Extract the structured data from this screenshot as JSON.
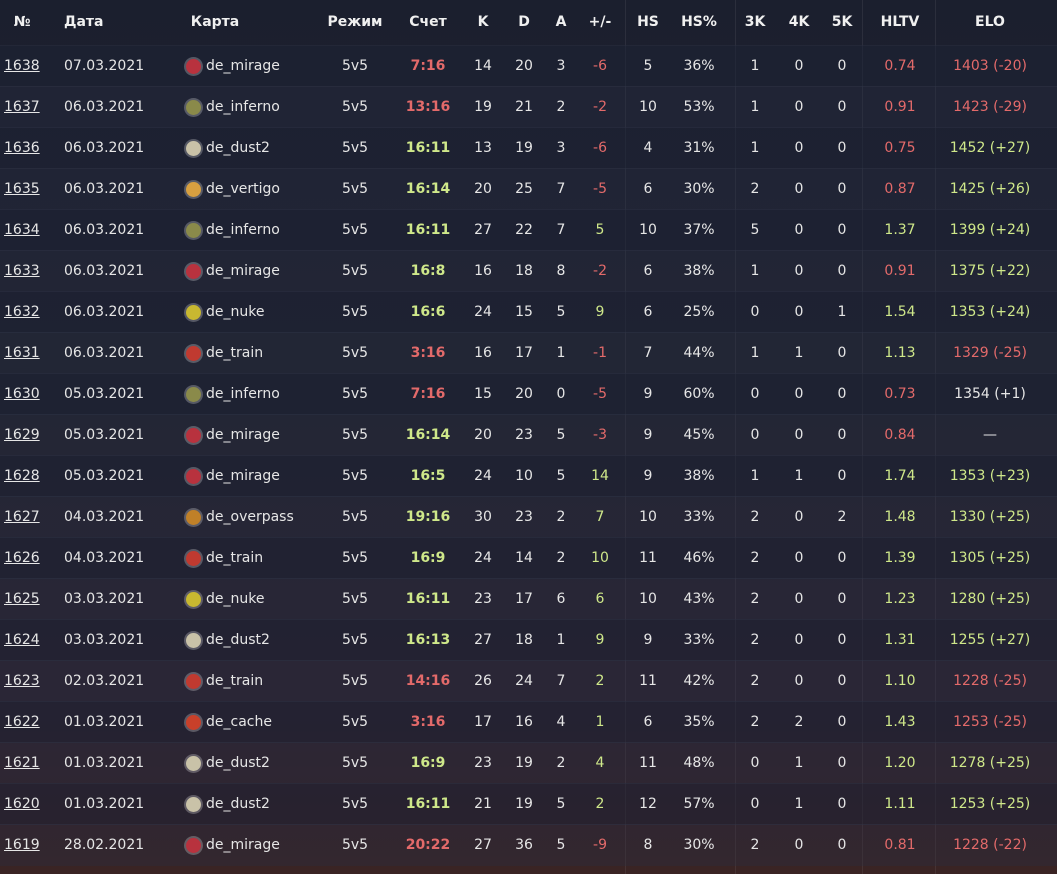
{
  "table": {
    "header": [
      "№",
      "Дата",
      "Карта",
      "Режим",
      "Счет",
      "K",
      "D",
      "A",
      "+/-",
      "HS",
      "HS%",
      "3K",
      "4K",
      "5K",
      "HLTV",
      "ELO"
    ],
    "rows": [
      [
        "1638",
        "07.03.2021",
        "de_mirage",
        "5v5",
        "7:16",
        "14",
        "20",
        "3",
        "-6",
        "5",
        "36%",
        "1",
        "0",
        "0",
        "0.74",
        "1403 (-20)"
      ],
      [
        "1637",
        "06.03.2021",
        "de_inferno",
        "5v5",
        "13:16",
        "19",
        "21",
        "2",
        "-2",
        "10",
        "53%",
        "1",
        "0",
        "0",
        "0.91",
        "1423 (-29)"
      ],
      [
        "1636",
        "06.03.2021",
        "de_dust2",
        "5v5",
        "16:11",
        "13",
        "19",
        "3",
        "-6",
        "4",
        "31%",
        "1",
        "0",
        "0",
        "0.75",
        "1452 (+27)"
      ],
      [
        "1635",
        "06.03.2021",
        "de_vertigo",
        "5v5",
        "16:14",
        "20",
        "25",
        "7",
        "-5",
        "6",
        "30%",
        "2",
        "0",
        "0",
        "0.87",
        "1425 (+26)"
      ],
      [
        "1634",
        "06.03.2021",
        "de_inferno",
        "5v5",
        "16:11",
        "27",
        "22",
        "7",
        "5",
        "10",
        "37%",
        "5",
        "0",
        "0",
        "1.37",
        "1399 (+24)"
      ],
      [
        "1633",
        "06.03.2021",
        "de_mirage",
        "5v5",
        "16:8",
        "16",
        "18",
        "8",
        "-2",
        "6",
        "38%",
        "1",
        "0",
        "0",
        "0.91",
        "1375 (+22)"
      ],
      [
        "1632",
        "06.03.2021",
        "de_nuke",
        "5v5",
        "16:6",
        "24",
        "15",
        "5",
        "9",
        "6",
        "25%",
        "0",
        "0",
        "1",
        "1.54",
        "1353 (+24)"
      ],
      [
        "1631",
        "06.03.2021",
        "de_train",
        "5v5",
        "3:16",
        "16",
        "17",
        "1",
        "-1",
        "7",
        "44%",
        "1",
        "1",
        "0",
        "1.13",
        "1329 (-25)"
      ],
      [
        "1630",
        "05.03.2021",
        "de_inferno",
        "5v5",
        "7:16",
        "15",
        "20",
        "0",
        "-5",
        "9",
        "60%",
        "0",
        "0",
        "0",
        "0.73",
        "1354 (+1)"
      ],
      [
        "1629",
        "05.03.2021",
        "de_mirage",
        "5v5",
        "16:14",
        "20",
        "23",
        "5",
        "-3",
        "9",
        "45%",
        "0",
        "0",
        "0",
        "0.84",
        "—"
      ],
      [
        "1628",
        "05.03.2021",
        "de_mirage",
        "5v5",
        "16:5",
        "24",
        "10",
        "5",
        "14",
        "9",
        "38%",
        "1",
        "1",
        "0",
        "1.74",
        "1353 (+23)"
      ],
      [
        "1627",
        "04.03.2021",
        "de_overpass",
        "5v5",
        "19:16",
        "30",
        "23",
        "2",
        "7",
        "10",
        "33%",
        "2",
        "0",
        "2",
        "1.48",
        "1330 (+25)"
      ],
      [
        "1626",
        "04.03.2021",
        "de_train",
        "5v5",
        "16:9",
        "24",
        "14",
        "2",
        "10",
        "11",
        "46%",
        "2",
        "0",
        "0",
        "1.39",
        "1305 (+25)"
      ],
      [
        "1625",
        "03.03.2021",
        "de_nuke",
        "5v5",
        "16:11",
        "23",
        "17",
        "6",
        "6",
        "10",
        "43%",
        "2",
        "0",
        "0",
        "1.23",
        "1280 (+25)"
      ],
      [
        "1624",
        "03.03.2021",
        "de_dust2",
        "5v5",
        "16:13",
        "27",
        "18",
        "1",
        "9",
        "9",
        "33%",
        "2",
        "0",
        "0",
        "1.31",
        "1255 (+27)"
      ],
      [
        "1623",
        "02.03.2021",
        "de_train",
        "5v5",
        "14:16",
        "26",
        "24",
        "7",
        "2",
        "11",
        "42%",
        "2",
        "0",
        "0",
        "1.10",
        "1228 (-25)"
      ],
      [
        "1622",
        "01.03.2021",
        "de_cache",
        "5v5",
        "3:16",
        "17",
        "16",
        "4",
        "1",
        "6",
        "35%",
        "2",
        "2",
        "0",
        "1.43",
        "1253 (-25)"
      ],
      [
        "1621",
        "01.03.2021",
        "de_dust2",
        "5v5",
        "16:9",
        "23",
        "19",
        "2",
        "4",
        "11",
        "48%",
        "0",
        "1",
        "0",
        "1.20",
        "1278 (+25)"
      ],
      [
        "1620",
        "01.03.2021",
        "de_dust2",
        "5v5",
        "16:11",
        "21",
        "19",
        "5",
        "2",
        "12",
        "57%",
        "0",
        "1",
        "0",
        "1.11",
        "1253 (+25)"
      ],
      [
        "1619",
        "28.02.2021",
        "de_mirage",
        "5v5",
        "20:22",
        "27",
        "36",
        "5",
        "-9",
        "8",
        "30%",
        "2",
        "0",
        "0",
        "0.81",
        "1228 (-22)"
      ]
    ]
  }
}
